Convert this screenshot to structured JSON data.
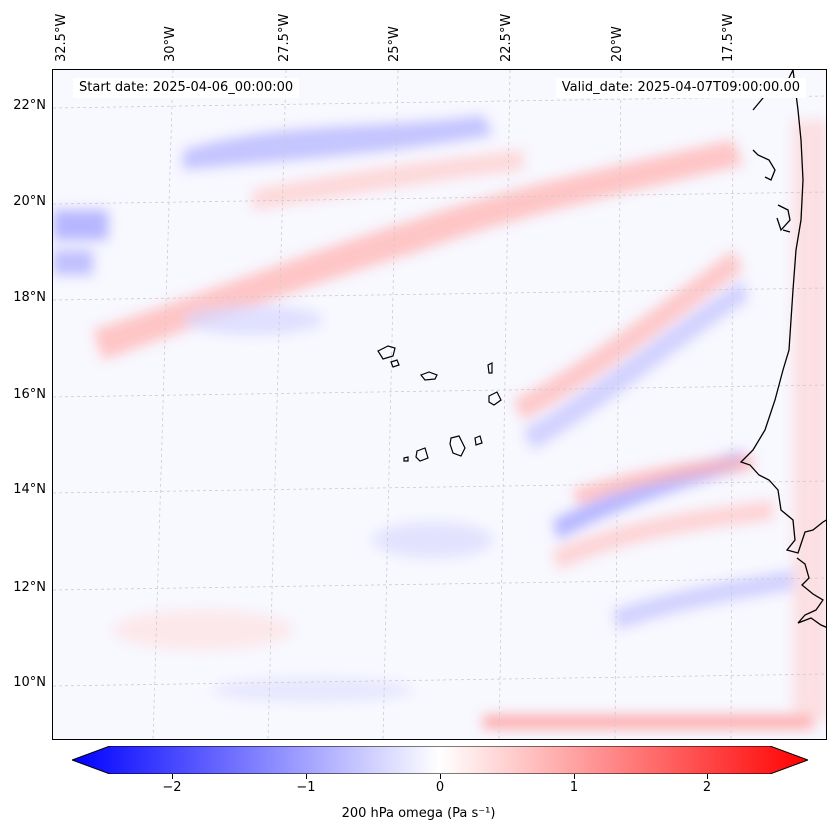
{
  "map": {
    "start_date": "Start date: 2025-04-06_00:00:00",
    "valid_date": "Valid_date: 2025-04-07T09:00:00.00",
    "lon_labels": [
      "32.5°W",
      "30°W",
      "27.5°W",
      "25°W",
      "22.5°W",
      "20°W",
      "17.5°W"
    ],
    "lat_labels": [
      "22°N",
      "20°N",
      "18°N",
      "16°N",
      "14°N",
      "12°N",
      "10°N"
    ],
    "colorbar": {
      "ticks": [
        "−2",
        "−1",
        "0",
        "1",
        "2"
      ],
      "tick_values": [
        -2,
        -1,
        0,
        1,
        2
      ],
      "range": [
        -2.5,
        2.5
      ],
      "label": "200 hPa omega (Pa s⁻¹)",
      "colormap": "bwr"
    },
    "colors": {
      "negative": "#0000ff",
      "zero": "#ffffff",
      "positive": "#ff0000",
      "coastline": "#000000"
    }
  }
}
